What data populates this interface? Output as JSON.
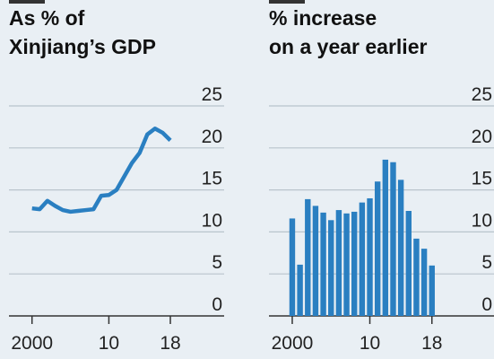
{
  "chart_data": [
    {
      "type": "line",
      "title": [
        "As % of",
        "Xinjiang’s GDP"
      ],
      "x": [
        2000,
        2001,
        2002,
        2003,
        2004,
        2005,
        2006,
        2007,
        2008,
        2009,
        2010,
        2011,
        2012,
        2013,
        2014,
        2015,
        2016,
        2017,
        2018
      ],
      "series": [
        {
          "name": "As % of Xinjiang’s GDP",
          "color": "#2a7fc1",
          "values": [
            12.8,
            12.7,
            13.7,
            13.1,
            12.6,
            12.4,
            12.5,
            12.6,
            12.7,
            14.3,
            14.4,
            15.0,
            16.6,
            18.2,
            19.4,
            21.6,
            22.3,
            21.8,
            20.9
          ]
        }
      ],
      "xlim": [
        1997,
        2025
      ],
      "xticks": [
        2000,
        {
          "value": 2010,
          "label": "10"
        },
        {
          "value": 2018,
          "label": "18"
        }
      ],
      "ylim": [
        0,
        25
      ],
      "yticks": [
        0,
        5,
        10,
        15,
        20,
        25
      ],
      "grid": true
    },
    {
      "type": "bar",
      "title": [
        "% increase",
        "on a year earlier"
      ],
      "x": [
        2000,
        2001,
        2002,
        2003,
        2004,
        2005,
        2006,
        2007,
        2008,
        2009,
        2010,
        2011,
        2012,
        2013,
        2014,
        2015,
        2016,
        2017,
        2018
      ],
      "series": [
        {
          "name": "% increase on a year earlier",
          "color": "#2a7fc1",
          "values": [
            11.6,
            6.1,
            13.9,
            13.1,
            12.3,
            11.4,
            12.6,
            12.2,
            12.4,
            13.5,
            14.0,
            16.0,
            18.6,
            18.3,
            16.2,
            12.5,
            9.2,
            8.0,
            6.0
          ]
        }
      ],
      "xlim": [
        1997,
        2026
      ],
      "xticks": [
        2000,
        {
          "value": 2010,
          "label": "10"
        },
        {
          "value": 2018,
          "label": "18"
        }
      ],
      "ylim": [
        0,
        25
      ],
      "yticks": [
        0,
        5,
        10,
        15,
        20,
        25
      ],
      "grid": true
    }
  ]
}
